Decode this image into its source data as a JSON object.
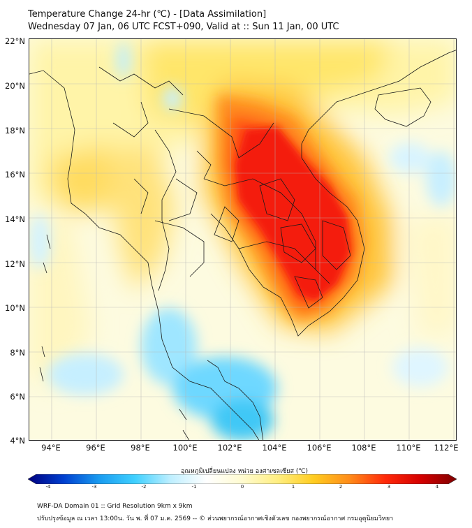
{
  "title": {
    "line1": "Temperature Change 24-hr (℃) - [Data Assimilation]",
    "line2": "Wednesday 07 Jan, 06 UTC FCST+090, Valid at :: Sun 11 Jan, 00 UTC"
  },
  "map": {
    "lat_labels": [
      "22°N",
      "20°N",
      "18°N",
      "16°N",
      "14°N",
      "12°N",
      "10°N",
      "8°N",
      "6°N",
      "4°N"
    ],
    "lon_labels": [
      "94°E",
      "96°E",
      "98°E",
      "100°E",
      "102°E",
      "104°E",
      "106°E",
      "108°E",
      "110°E",
      "112°E"
    ],
    "lat_range": [
      4,
      22
    ],
    "lon_range": [
      93,
      112
    ],
    "field_units": "°C",
    "field_range": [
      -4,
      4
    ]
  },
  "colorbar": {
    "title": "อุณหภูมิเปลี่ยนแปลง หน่วย องศาเซลเซียส (℃)",
    "ticks": [
      "-4",
      "-3",
      "-2",
      "-1",
      "0",
      "1",
      "2",
      "3",
      "4"
    ],
    "colors": [
      "#00007f",
      "#0040d0",
      "#1a9cf0",
      "#40d0ff",
      "#bfefff",
      "#ffffff",
      "#fffbd0",
      "#ffee80",
      "#ffcc20",
      "#ff8c1a",
      "#ff2a0a",
      "#d40000",
      "#7f0000"
    ]
  },
  "footer": {
    "line1": "WRF-DA Domain 01 :: Grid Resolution 9km x 9km",
    "line2": "ปรับปรุงข้อมูล ณ เวลา 13:00น. วัน พ. ที่ 07 ม.ค. 2569 -- © ส่วนพยากรณ์อากาศเชิงตัวเลข กองพยากรณ์อากาศ กรมอุตุนิยมวิทยา"
  }
}
